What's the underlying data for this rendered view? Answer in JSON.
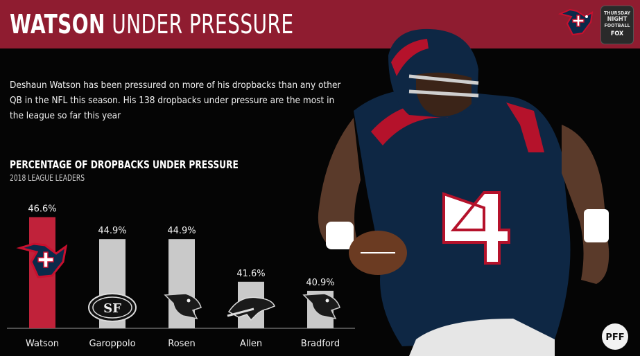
{
  "banner": {
    "title_bold": "WATSON",
    "title_rest": "UNDER PRESSURE",
    "color": "#8f1c30"
  },
  "intro": "Deshaun Watson has been pressured on more of his dropbacks than any other QB in the NFL this season. His 138 dropbacks under pressure are the most in the league so far this year",
  "tnf_badge": {
    "line1": "THURSDAY",
    "line2": "NIGHT",
    "line3": "FOOTBALL",
    "line4": "FOX"
  },
  "pff_logo": "PFF",
  "chart_data": {
    "type": "bar",
    "title": "PERCENTAGE OF DROPBACKS UNDER PRESSURE",
    "subtitle": "2018 LEAGUE LEADERS",
    "categories": [
      "Watson",
      "Garoppolo",
      "Rosen",
      "Allen",
      "Bradford"
    ],
    "values": [
      46.6,
      44.9,
      44.9,
      41.6,
      40.9
    ],
    "labels": [
      "46.6%",
      "44.9%",
      "44.9%",
      "41.6%",
      "40.9%"
    ],
    "team_icons": [
      "texans-logo-icon",
      "49ers-logo-icon",
      "cardinals-logo-icon",
      "bills-logo-icon",
      "cardinals-logo-icon"
    ],
    "highlight_color": "#c0223a",
    "bar_color": "#c9c9c9",
    "ylim": [
      38,
      47
    ]
  }
}
